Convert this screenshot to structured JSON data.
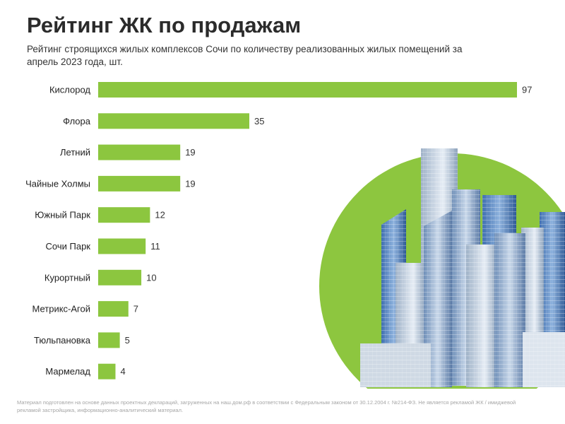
{
  "header": {
    "title": "Рейтинг ЖК по продажам",
    "subtitle": "Рейтинг строящихся жилых комплексов Сочи по количеству реализованных жилых помещений за апрель 2023 года, шт."
  },
  "chart_data": {
    "type": "bar",
    "orientation": "horizontal",
    "categories": [
      "Кислород",
      "Флора",
      "Летний",
      "Чайные Холмы",
      "Южный Парк",
      "Сочи Парк",
      "Курортный",
      "Метрикс-Агой",
      "Тюльпановка",
      "Мармелад"
    ],
    "values": [
      97,
      35,
      19,
      19,
      12,
      11,
      10,
      7,
      5,
      4
    ],
    "xlim": [
      0,
      97
    ],
    "grid": false,
    "legend": "none",
    "data_labels": true
  },
  "colors": {
    "bar": "#8cc63f",
    "circle": "#8dc63f",
    "title": "#2b2b2b"
  },
  "illustration": {
    "icon": "city-skyscrapers-illustration"
  },
  "footnote": "Материал подготовлен на основе данных проектных деклараций, загруженных на наш.дом.рф в соответствии с Федеральным законом от 30.12.2004 г. №214-ФЗ. Не является рекламой ЖК / имиджевой рекламой застройщика, информационно-аналитический материал."
}
